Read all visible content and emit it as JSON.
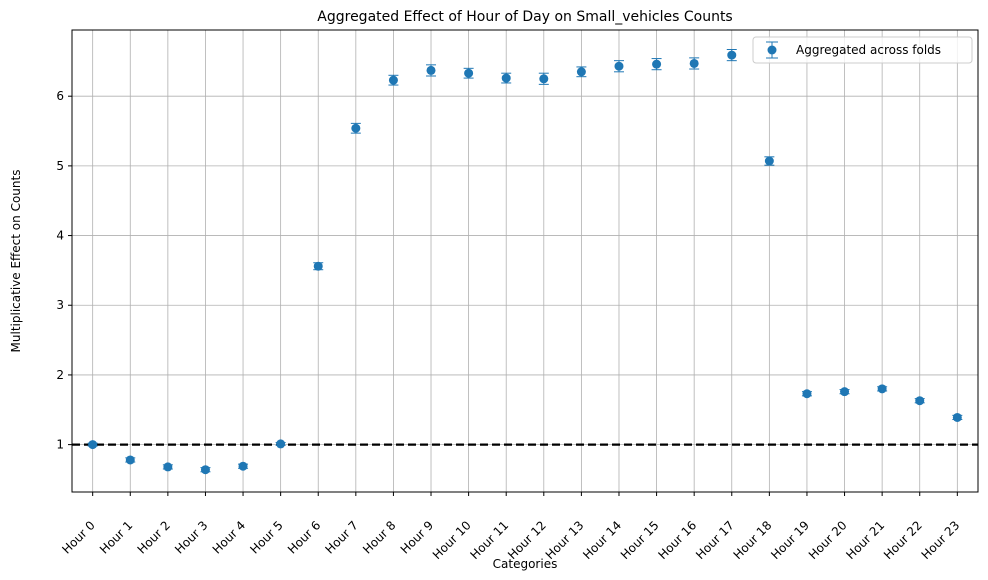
{
  "chart_data": {
    "type": "scatter",
    "title": "Aggregated Effect of Hour of Day on Small_vehicles Counts",
    "xlabel": "Categories",
    "ylabel": "Multiplicative Effect on Counts",
    "ylim": [
      0.32,
      6.95
    ],
    "yticks": [
      1,
      2,
      3,
      4,
      5,
      6
    ],
    "grid": true,
    "legend_position": "top-right",
    "reference_line": {
      "y": 1,
      "style": "dashed",
      "color": "#000000"
    },
    "categories": [
      "Hour 0",
      "Hour 1",
      "Hour 2",
      "Hour 3",
      "Hour 4",
      "Hour 5",
      "Hour 6",
      "Hour 7",
      "Hour 8",
      "Hour 9",
      "Hour 10",
      "Hour 11",
      "Hour 12",
      "Hour 13",
      "Hour 14",
      "Hour 15",
      "Hour 16",
      "Hour 17",
      "Hour 18",
      "Hour 19",
      "Hour 20",
      "Hour 21",
      "Hour 22",
      "Hour 23"
    ],
    "series": [
      {
        "name": "Aggregated across folds",
        "color": "#1f77b4",
        "values": [
          1.0,
          0.78,
          0.68,
          0.64,
          0.69,
          1.01,
          3.56,
          5.54,
          6.23,
          6.37,
          6.33,
          6.26,
          6.25,
          6.35,
          6.43,
          6.46,
          6.47,
          6.59,
          5.07,
          1.73,
          1.76,
          1.8,
          1.63,
          1.39
        ],
        "error": [
          0.02,
          0.03,
          0.03,
          0.03,
          0.03,
          0.02,
          0.05,
          0.07,
          0.07,
          0.08,
          0.07,
          0.07,
          0.08,
          0.07,
          0.08,
          0.08,
          0.08,
          0.08,
          0.06,
          0.03,
          0.03,
          0.03,
          0.03,
          0.03
        ]
      }
    ]
  }
}
